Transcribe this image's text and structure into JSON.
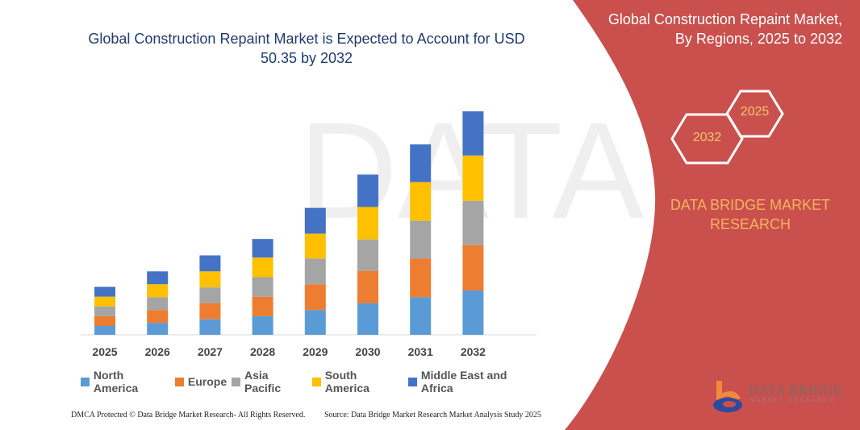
{
  "header": {
    "title": "Global Construction Repaint Market is Expected to Account for USD 50.35 by 2032"
  },
  "side_panel": {
    "title_line1": "Global Construction Repaint Market,",
    "title_line2": "By Regions, 2025 to 2032",
    "hex_start": "2025",
    "hex_end": "2032",
    "brand_line1": "DATA BRIDGE MARKET",
    "brand_line2": "RESEARCH",
    "logo_text": "DATA BRIDGE",
    "logo_sub": "MARKET RESEARCH"
  },
  "footer": {
    "copyright": "DMCA Protected © Data Bridge Market Research- All Rights Reserved.",
    "source": "Source: Data Bridge Market Research Market Analysis Study 2025"
  },
  "colors": {
    "panel": "#c9504d",
    "title": "#1f3c6e"
  },
  "chart_data": {
    "type": "bar",
    "stacked": true,
    "title": "Global Construction Repaint Market is Expected to Account for USD 50.35 by 2032",
    "categories": [
      "2025",
      "2026",
      "2027",
      "2028",
      "2029",
      "2030",
      "2031",
      "2032"
    ],
    "series": [
      {
        "name": "North America",
        "color": "#5b9bd5",
        "values": [
          2.0,
          2.7,
          3.5,
          4.2,
          5.6,
          7.1,
          8.5,
          10.0
        ]
      },
      {
        "name": "Europe",
        "color": "#ed7d31",
        "values": [
          2.2,
          2.9,
          3.6,
          4.4,
          5.8,
          7.3,
          8.7,
          10.2
        ]
      },
      {
        "name": "Asia Pacific",
        "color": "#a5a5a5",
        "values": [
          2.2,
          2.9,
          3.6,
          4.4,
          5.8,
          7.1,
          8.5,
          10.0
        ]
      },
      {
        "name": "South America",
        "color": "#ffc000",
        "values": [
          2.2,
          2.9,
          3.6,
          4.4,
          5.6,
          7.3,
          8.7,
          10.2
        ]
      },
      {
        "name": "Middle East and Africa",
        "color": "#4472c4",
        "values": [
          2.2,
          2.9,
          3.6,
          4.2,
          5.8,
          7.3,
          8.5,
          9.95
        ]
      }
    ],
    "xlabel": "",
    "ylabel": "",
    "ylim": [
      0,
      50.35
    ],
    "y_axis_shown": false,
    "grid": false,
    "legend_position": "bottom"
  }
}
